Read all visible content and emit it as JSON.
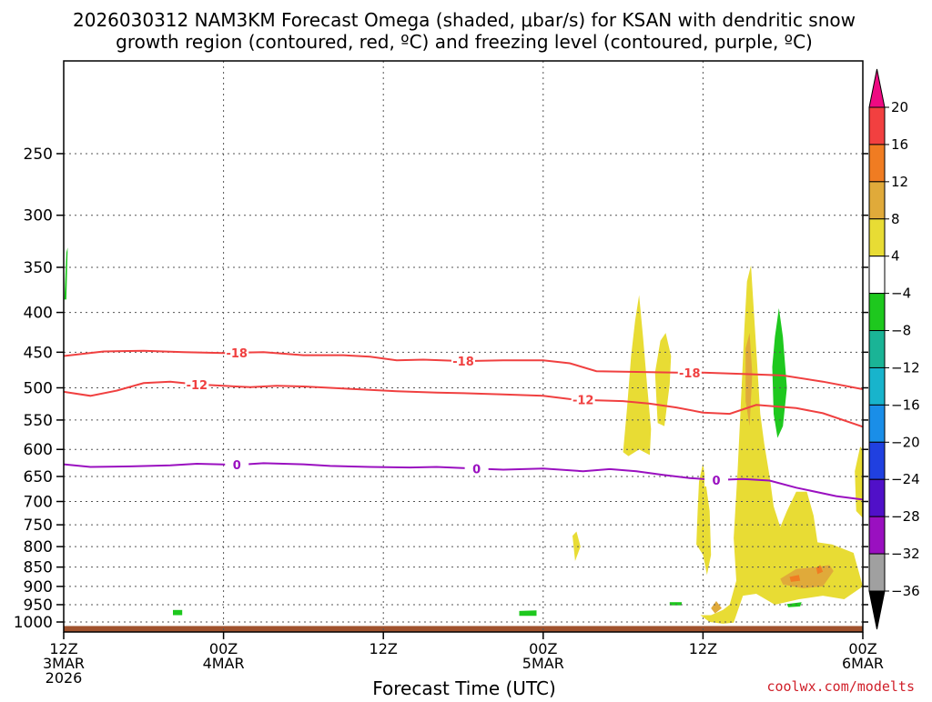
{
  "chart_data": {
    "type": "heatmap",
    "title_line1": "2026030312 NAM3KM Forecast Omega (shaded, μbar/s) for KSAN with dendritic snow",
    "title_line2": "growth region (contoured, red, ºC) and freezing level (contoured, purple, ºC)",
    "xlabel": "Forecast Time (UTC)",
    "credit": "coolwx.com/modelts",
    "x_range_hours": [
      0,
      60
    ],
    "y_range_hpa": [
      1030,
      190
    ],
    "y_scale": "log",
    "y_ticks": [
      250,
      300,
      350,
      400,
      450,
      500,
      550,
      600,
      650,
      700,
      750,
      800,
      850,
      900,
      950,
      1000
    ],
    "y_tick_labels": [
      "250",
      "300",
      "350",
      "400",
      "450",
      "500",
      "550",
      "600",
      "650",
      "700",
      "750",
      "800",
      "850",
      "900",
      "950",
      "1000"
    ],
    "x_ticks": [
      {
        "hour": 0,
        "line1": "12Z",
        "line2": "3MAR",
        "line3": "2026"
      },
      {
        "hour": 12,
        "line1": "00Z",
        "line2": "4MAR",
        "line3": ""
      },
      {
        "hour": 24,
        "line1": "12Z",
        "line2": "",
        "line3": ""
      },
      {
        "hour": 36,
        "line1": "00Z",
        "line2": "5MAR",
        "line3": ""
      },
      {
        "hour": 48,
        "line1": "12Z",
        "line2": "",
        "line3": ""
      },
      {
        "hour": 60,
        "line1": "00Z",
        "line2": "6MAR",
        "line3": ""
      }
    ],
    "grid": true,
    "colorbar": {
      "labels": [
        "20",
        "16",
        "12",
        "8",
        "4",
        "−4",
        "−8",
        "−12",
        "−16",
        "−20",
        "−24",
        "−28",
        "−32",
        "−36"
      ],
      "colors": [
        "#ee0a82",
        "#f24040",
        "#f07c22",
        "#e0aa3a",
        "#e8dc34",
        "#ffffff",
        "#1ec81e",
        "#1ab496",
        "#18b4cc",
        "#1a8ee8",
        "#2040e0",
        "#5010c8",
        "#9a10c0",
        "#a0a0a0",
        "#000000"
      ]
    },
    "contours": [
      {
        "label": "-18",
        "color": "#f04040",
        "points": [
          [
            0,
            455
          ],
          [
            3,
            449
          ],
          [
            6,
            448
          ],
          [
            9,
            450
          ],
          [
            12,
            451
          ],
          [
            15,
            450
          ],
          [
            18,
            454
          ],
          [
            21,
            454
          ],
          [
            23,
            456
          ],
          [
            25,
            461
          ],
          [
            27,
            460
          ],
          [
            30,
            462
          ],
          [
            33,
            461
          ],
          [
            36,
            461
          ],
          [
            38,
            465
          ],
          [
            40,
            476
          ],
          [
            43,
            477
          ],
          [
            46,
            478
          ],
          [
            48,
            478
          ],
          [
            51,
            480
          ],
          [
            54,
            482
          ],
          [
            57,
            491
          ],
          [
            60,
            502
          ]
        ],
        "label_positions": [
          13,
          30,
          47
        ]
      },
      {
        "label": "-12",
        "color": "#f04040",
        "points": [
          [
            0,
            506
          ],
          [
            2,
            512
          ],
          [
            4,
            504
          ],
          [
            6,
            493
          ],
          [
            8,
            491
          ],
          [
            10,
            495
          ],
          [
            12,
            497
          ],
          [
            14,
            499
          ],
          [
            16,
            497
          ],
          [
            18,
            498
          ],
          [
            20,
            500
          ],
          [
            22,
            502
          ],
          [
            25,
            505
          ],
          [
            28,
            507
          ],
          [
            30,
            508
          ],
          [
            33,
            510
          ],
          [
            36,
            512
          ],
          [
            38,
            517
          ],
          [
            40,
            519
          ],
          [
            42,
            520
          ],
          [
            44,
            524
          ],
          [
            46,
            530
          ],
          [
            48,
            538
          ],
          [
            50,
            540
          ],
          [
            52,
            526
          ],
          [
            55,
            531
          ],
          [
            57,
            539
          ],
          [
            60,
            561
          ]
        ],
        "label_positions": [
          10,
          39
        ]
      },
      {
        "label": "0",
        "color": "#9a10c0",
        "points": [
          [
            0,
            627
          ],
          [
            2,
            632
          ],
          [
            5,
            631
          ],
          [
            8,
            629
          ],
          [
            10,
            626
          ],
          [
            13,
            628
          ],
          [
            15,
            625
          ],
          [
            18,
            627
          ],
          [
            20,
            630
          ],
          [
            23,
            632
          ],
          [
            26,
            633
          ],
          [
            28,
            632
          ],
          [
            30,
            634
          ],
          [
            33,
            637
          ],
          [
            36,
            635
          ],
          [
            39,
            640
          ],
          [
            41,
            636
          ],
          [
            43,
            640
          ],
          [
            45,
            647
          ],
          [
            47,
            653
          ],
          [
            49,
            657
          ],
          [
            51,
            655
          ],
          [
            53,
            658
          ],
          [
            55,
            672
          ],
          [
            58,
            689
          ],
          [
            60,
            696
          ]
        ],
        "label_positions": [
          13,
          31,
          49
        ]
      }
    ],
    "omega_regions": [
      {
        "level": "4 to 8",
        "color": "#e8dc34",
        "polygons": [
          [
            [
              42.0,
              605
            ],
            [
              42.3,
              530
            ],
            [
              42.6,
              455
            ],
            [
              42.9,
              410
            ],
            [
              43.2,
              380
            ],
            [
              43.5,
              430
            ],
            [
              43.8,
              495
            ],
            [
              44.1,
              565
            ],
            [
              44.0,
              610
            ],
            [
              43.2,
              600
            ],
            [
              42.4,
              612
            ]
          ],
          [
            [
              44.4,
              478
            ],
            [
              44.8,
              435
            ],
            [
              45.2,
              425
            ],
            [
              45.6,
              455
            ],
            [
              45.5,
              495
            ],
            [
              45.1,
              560
            ],
            [
              44.6,
              555
            ]
          ],
          [
            [
              47.5,
              795
            ],
            [
              47.6,
              720
            ],
            [
              47.7,
              660
            ],
            [
              48.0,
              625
            ],
            [
              48.5,
              720
            ],
            [
              48.6,
              820
            ],
            [
              48.3,
              870
            ],
            [
              48.0,
              820
            ],
            [
              47.5,
              795
            ]
          ],
          [
            [
              47.8,
              980
            ],
            [
              48.6,
              980
            ],
            [
              49.5,
              965
            ],
            [
              50.0,
              950
            ],
            [
              50.5,
              885
            ],
            [
              50.3,
              780
            ],
            [
              50.6,
              640
            ],
            [
              50.9,
              500
            ],
            [
              51.1,
              420
            ],
            [
              51.3,
              365
            ],
            [
              51.6,
              348
            ],
            [
              51.9,
              420
            ],
            [
              52.3,
              540
            ],
            [
              52.6,
              590
            ],
            [
              53.0,
              650
            ],
            [
              53.3,
              710
            ],
            [
              53.8,
              755
            ],
            [
              54.3,
              720
            ],
            [
              55.0,
              680
            ],
            [
              55.8,
              680
            ],
            [
              56.3,
              730
            ],
            [
              56.6,
              790
            ],
            [
              57.7,
              795
            ],
            [
              59.3,
              815
            ],
            [
              60.0,
              900
            ],
            [
              58.6,
              935
            ],
            [
              57.0,
              925
            ],
            [
              55.2,
              935
            ],
            [
              53.4,
              950
            ],
            [
              52.0,
              920
            ],
            [
              51.0,
              925
            ],
            [
              50.3,
              1002
            ],
            [
              49.5,
              1005
            ],
            [
              48.5,
              1000
            ],
            [
              47.8,
              980
            ]
          ],
          [
            [
              59.4,
              640
            ],
            [
              59.8,
              595
            ],
            [
              60.0,
              600
            ],
            [
              60.0,
              735
            ],
            [
              59.5,
              720
            ]
          ],
          [
            [
              38.2,
              775
            ],
            [
              38.5,
              765
            ],
            [
              38.8,
              800
            ],
            [
              38.4,
              835
            ]
          ]
        ]
      },
      {
        "level": "8 to 12",
        "color": "#e0aa3a",
        "polygons": [
          [
            [
              51.2,
              445
            ],
            [
              51.5,
              425
            ],
            [
              51.7,
              480
            ],
            [
              51.5,
              560
            ],
            [
              51.2,
              520
            ]
          ],
          [
            [
              53.8,
              880
            ],
            [
              55.0,
              855
            ],
            [
              56.5,
              850
            ],
            [
              57.5,
              845
            ],
            [
              57.8,
              860
            ],
            [
              57.0,
              900
            ],
            [
              55.5,
              905
            ],
            [
              54.0,
              895
            ]
          ],
          [
            [
              48.6,
              960
            ],
            [
              49.0,
              940
            ],
            [
              49.4,
              960
            ],
            [
              48.9,
              975
            ]
          ]
        ]
      },
      {
        "level": "12 to 16",
        "color": "#f07c22",
        "polygons": [
          [
            [
              54.5,
              875
            ],
            [
              55.2,
              870
            ],
            [
              55.3,
              885
            ],
            [
              54.6,
              888
            ]
          ],
          [
            [
              56.5,
              852
            ],
            [
              56.8,
              845
            ],
            [
              57.0,
              862
            ],
            [
              56.6,
              868
            ]
          ]
        ]
      },
      {
        "level": "-4 to -8",
        "color": "#1ec81e",
        "polygons": [
          [
            [
              53.2,
              470
            ],
            [
              53.4,
              430
            ],
            [
              53.7,
              395
            ],
            [
              54.0,
              430
            ],
            [
              54.3,
              500
            ],
            [
              54.0,
              560
            ],
            [
              53.6,
              580
            ],
            [
              53.3,
              540
            ]
          ],
          [
            [
              0.05,
              385
            ],
            [
              0.2,
              335
            ],
            [
              0.3,
              330
            ],
            [
              0.2,
              385
            ]
          ],
          [
            [
              8.2,
              965
            ],
            [
              8.9,
              965
            ],
            [
              8.9,
              980
            ],
            [
              8.2,
              980
            ]
          ],
          [
            [
              34.2,
              968
            ],
            [
              35.5,
              966
            ],
            [
              35.5,
              982
            ],
            [
              34.2,
              982
            ]
          ],
          [
            [
              45.5,
              943
            ],
            [
              46.4,
              943
            ],
            [
              46.4,
              952
            ],
            [
              45.5,
              952
            ]
          ],
          [
            [
              54.3,
              948
            ],
            [
              55.4,
              943
            ],
            [
              55.3,
              955
            ],
            [
              54.4,
              957
            ]
          ]
        ]
      }
    ],
    "surface_color": "#a0522d",
    "surface_top_hpa": 1012
  }
}
